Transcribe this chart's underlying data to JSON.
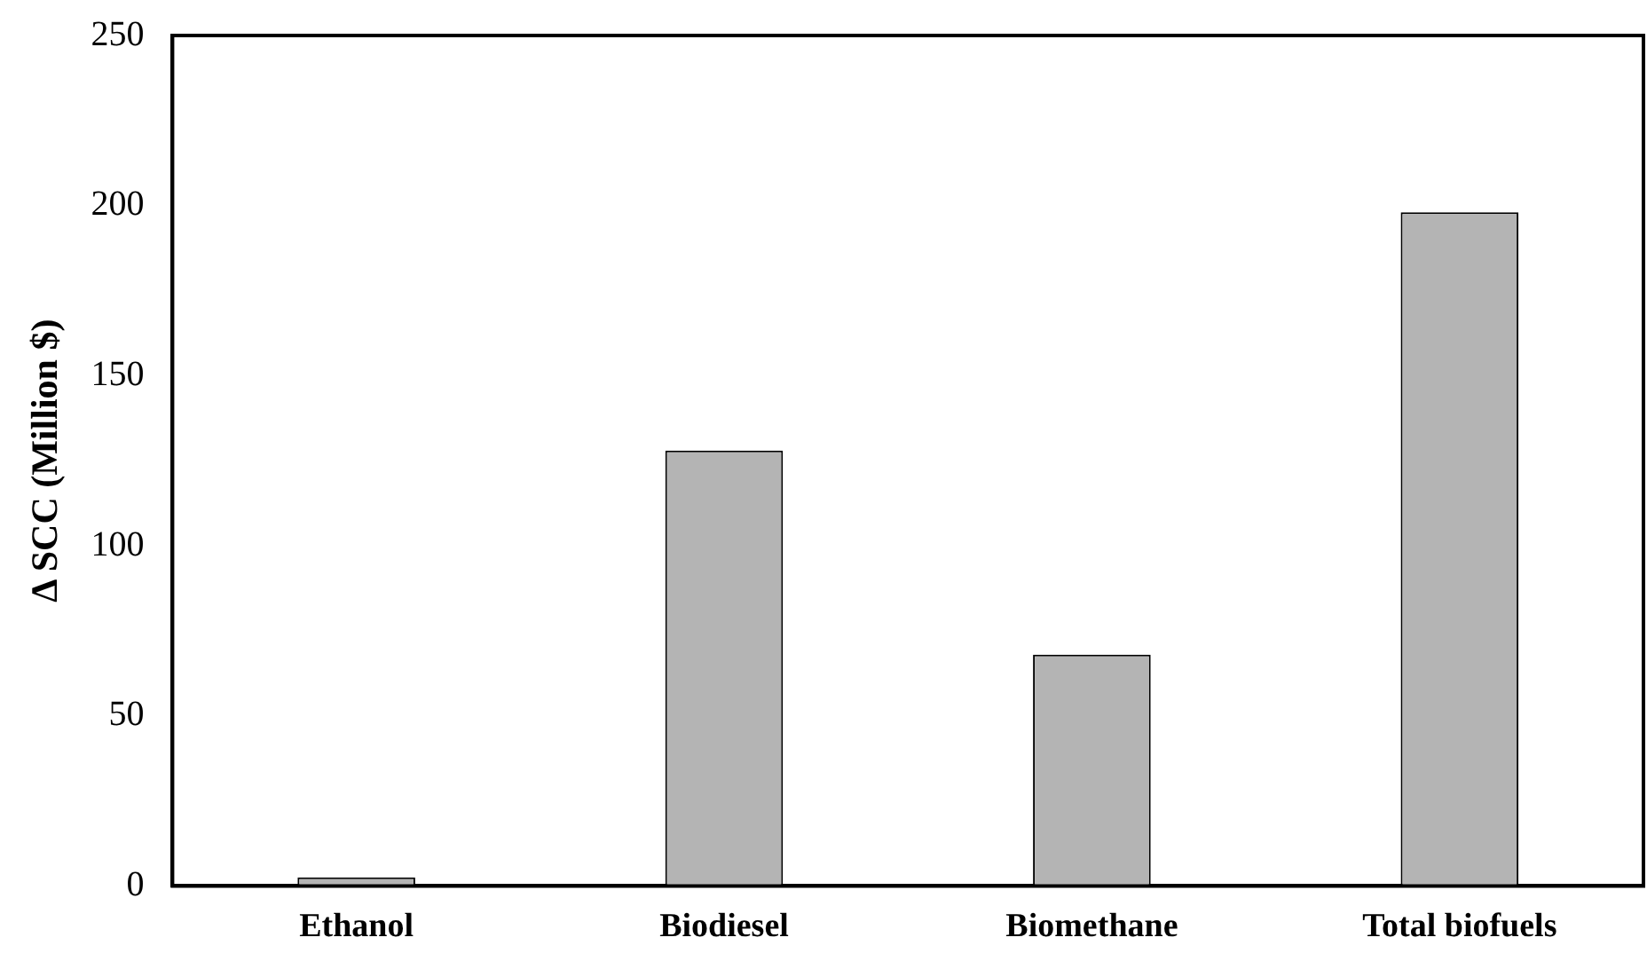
{
  "chart_data": {
    "type": "bar",
    "ylabel": "Δ SCC (Million $)",
    "categories": [
      "Ethanol",
      "Biodiesel",
      "Biomethane",
      "Total biofuels"
    ],
    "values": [
      2.5,
      128,
      68,
      198
    ],
    "color": "#b4b4b4",
    "ylim": [
      0,
      250
    ],
    "yticks": [
      0,
      50,
      100,
      150,
      200,
      250
    ],
    "grid": false,
    "legend": false
  }
}
